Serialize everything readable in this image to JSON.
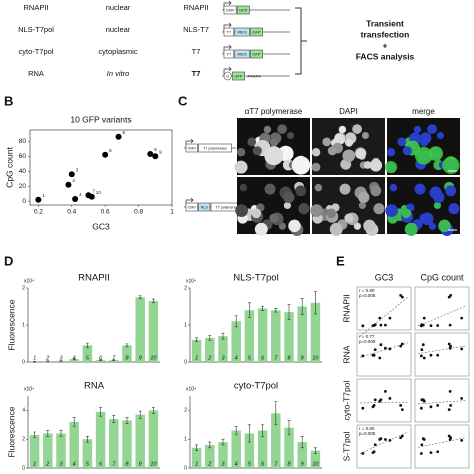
{
  "panel_letters": [
    "B",
    "C",
    "D",
    "E"
  ],
  "table": {
    "rows": [
      [
        "RNAPII",
        "nuclear",
        "RNAPII"
      ],
      [
        "NLS-T7pol",
        "nuclear",
        "NLS-T7"
      ],
      [
        "cyto-T7pol",
        "cytoplasmic",
        "T7"
      ],
      [
        "RNA",
        "In vitro",
        "T7"
      ]
    ],
    "constructs": [
      [
        "CMV",
        "GFP"
      ],
      [
        "T7",
        "IRES",
        "GFP"
      ],
      [
        "T7",
        "IRES",
        "GFP"
      ],
      [
        "G",
        "GFP",
        "AAAAA"
      ]
    ],
    "workflow": [
      "Transient",
      "transfection",
      "+",
      "FACS analysis"
    ]
  },
  "microscopy": {
    "columns": [
      "αT7 polymerase",
      "DAPI",
      "merge"
    ],
    "constructs": [
      [
        "CMV",
        "T7 polymerase"
      ],
      [
        "CMV",
        "NLS",
        "T7 polymerase"
      ]
    ]
  },
  "chart_data": [
    {
      "type": "scatter",
      "title": "10 GFP variants",
      "xlabel": "GC3",
      "ylabel": "CpG count",
      "x": [
        0.2,
        0.38,
        0.4,
        0.42,
        0.5,
        0.52,
        0.6,
        0.68,
        0.87,
        0.9
      ],
      "y": [
        2,
        22,
        36,
        3,
        8,
        6,
        62,
        86,
        63,
        60
      ],
      "point_labels": [
        "1",
        "2",
        "3",
        "4",
        "7",
        "10",
        "6",
        "8",
        "5",
        "9"
      ],
      "xlim": [
        0.15,
        1.0
      ],
      "xticks": [
        0.2,
        0.4,
        0.6,
        0.8,
        1
      ],
      "ylim": [
        -5,
        95
      ],
      "yticks": [
        0,
        20,
        40,
        60,
        80
      ],
      "color": "#000000"
    },
    {
      "type": "bar",
      "title": "RNAPII",
      "ylabel": "Fluorescence",
      "multiplier": "x10⁴",
      "categories": [
        "1",
        "2",
        "3",
        "4",
        "5",
        "6",
        "7",
        "8",
        "9",
        "10"
      ],
      "values": [
        0.01,
        0.02,
        0.03,
        0.08,
        0.45,
        0.05,
        0.05,
        0.45,
        1.75,
        1.65
      ],
      "errors": [
        0.01,
        0.01,
        0.01,
        0.02,
        0.06,
        0.01,
        0.01,
        0.04,
        0.04,
        0.05
      ],
      "ylim": [
        0,
        2
      ],
      "yticks": [
        0,
        1,
        2
      ],
      "color": "#93d693"
    },
    {
      "type": "bar",
      "title": "NLS-T7pol",
      "multiplier": "x10⁴",
      "categories": [
        "1",
        "2",
        "3",
        "4",
        "5",
        "6",
        "7",
        "8",
        "9",
        "10"
      ],
      "values": [
        0.6,
        0.65,
        0.7,
        1.1,
        1.4,
        1.45,
        1.4,
        1.35,
        1.5,
        1.6
      ],
      "errors": [
        0.05,
        0.06,
        0.08,
        0.15,
        0.2,
        0.06,
        0.05,
        0.2,
        0.22,
        0.3
      ],
      "ylim": [
        0,
        2
      ],
      "yticks": [
        0,
        1,
        2
      ],
      "color": "#93d693"
    },
    {
      "type": "bar",
      "title": "RNA",
      "ylabel": "Fluorescence",
      "multiplier": "x10⁴",
      "categories": [
        "1",
        "2",
        "3",
        "4",
        "5",
        "6",
        "7",
        "8",
        "9",
        "10"
      ],
      "values": [
        2.3,
        2.4,
        2.4,
        3.2,
        2.0,
        3.9,
        3.4,
        3.3,
        3.7,
        4.0
      ],
      "errors": [
        0.2,
        0.2,
        0.2,
        0.3,
        0.2,
        0.3,
        0.25,
        0.2,
        0.25,
        0.2
      ],
      "ylim": [
        0,
        5
      ],
      "yticks": [
        0,
        2,
        4
      ],
      "color": "#93d693"
    },
    {
      "type": "bar",
      "title": "cyto-T7pol",
      "multiplier": "x10⁴",
      "categories": [
        "1",
        "2",
        "3",
        "4",
        "5",
        "6",
        "7",
        "8",
        "9",
        "10"
      ],
      "values": [
        0.7,
        0.8,
        0.9,
        1.3,
        1.2,
        1.3,
        1.9,
        1.4,
        0.9,
        0.6
      ],
      "errors": [
        0.1,
        0.1,
        0.1,
        0.15,
        0.3,
        0.2,
        0.4,
        0.25,
        0.2,
        0.1
      ],
      "ylim": [
        0,
        2.5
      ],
      "yticks": [
        0,
        1,
        2
      ],
      "color": "#93d693"
    }
  ],
  "correlation": {
    "columns": [
      "GC3",
      "CpG count"
    ],
    "rows": [
      "RNAPII",
      "RNA",
      "cyto-T7pol",
      "S-T7pol"
    ],
    "gc3_annotations": [
      [
        "r = 0.80",
        "p=0.005"
      ],
      [
        "r = 0.77",
        "p=0.009"
      ],
      null,
      [
        "r = 0.80",
        "p=0.005"
      ]
    ]
  }
}
